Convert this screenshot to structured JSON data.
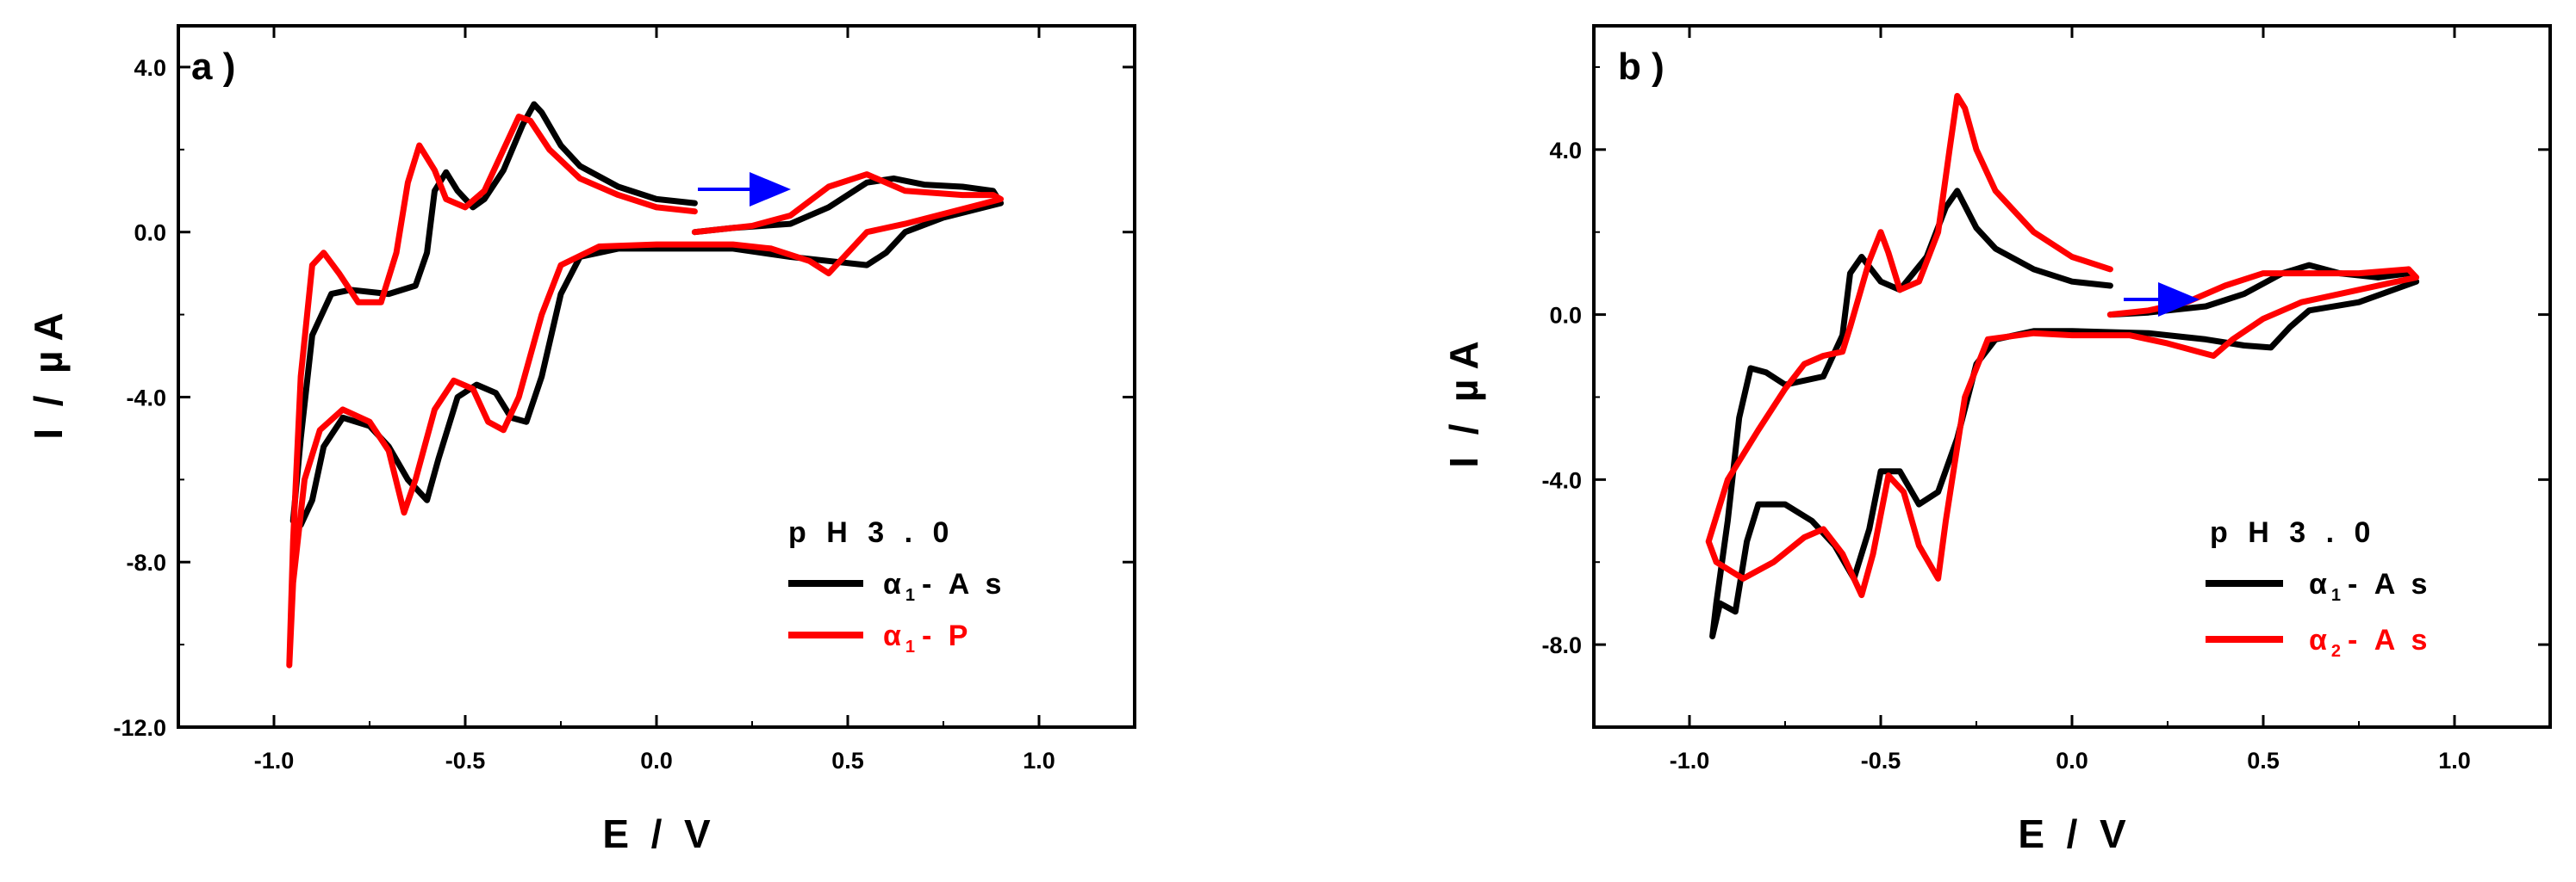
{
  "panels": [
    {
      "label": "a )",
      "xlabel": "E  /  V",
      "ylabel": "I  /  µ A",
      "xlim": [
        -1.25,
        1.25
      ],
      "ylim": [
        -12.0,
        5.0
      ],
      "xticks": [
        "-1.0",
        "-0.5",
        "0.0",
        "0.5",
        "1.0"
      ],
      "xtick_values": [
        -1.0,
        -0.5,
        0.0,
        0.5,
        1.0
      ],
      "yticks": [
        "4.0",
        "0.0",
        "-4.0",
        "-8.0",
        "-12.0"
      ],
      "ytick_values": [
        4.0,
        0.0,
        -4.0,
        -8.0,
        -12.0
      ],
      "legend": {
        "title": "p H 3 . 0",
        "entries": [
          {
            "symbol": "α",
            "sub": "1",
            "text": "- A s",
            "color": "#000000"
          },
          {
            "symbol": "α",
            "sub": "1",
            "text": "- P",
            "color": "#ff0000"
          }
        ]
      },
      "arrow_color": "#0000ff"
    },
    {
      "label": "b )",
      "xlabel": "E  /  V",
      "ylabel": "I  /  µ A",
      "xlim": [
        -1.25,
        1.25
      ],
      "ylim": [
        -10.0,
        7.0
      ],
      "xticks": [
        "-1.0",
        "-0.5",
        "0.0",
        "0.5",
        "1.0"
      ],
      "xtick_values": [
        -1.0,
        -0.5,
        0.0,
        0.5,
        1.0
      ],
      "yticks": [
        "4.0",
        "0.0",
        "-4.0",
        "-8.0"
      ],
      "ytick_values": [
        4.0,
        0.0,
        -4.0,
        -8.0
      ],
      "legend": {
        "title": "p H 3 . 0",
        "entries": [
          {
            "symbol": "α",
            "sub": "1",
            "text": "- A s",
            "color": "#000000"
          },
          {
            "symbol": "α",
            "sub": "2",
            "text": "- A s",
            "color": "#ff0000"
          }
        ]
      },
      "arrow_color": "#0000ff"
    }
  ],
  "chart_data": [
    {
      "type": "line",
      "title": "",
      "xlabel": "E / V",
      "ylabel": "I / µA",
      "xlim": [
        -1.25,
        1.25
      ],
      "ylim": [
        -12.0,
        5.0
      ],
      "series": [
        {
          "name": "α1-As",
          "color": "#000000",
          "points": [
            [
              0.1,
              0.7
            ],
            [
              0.0,
              0.8
            ],
            [
              -0.1,
              1.1
            ],
            [
              -0.2,
              1.6
            ],
            [
              -0.25,
              2.1
            ],
            [
              -0.3,
              2.9
            ],
            [
              -0.32,
              3.1
            ],
            [
              -0.35,
              2.6
            ],
            [
              -0.4,
              1.5
            ],
            [
              -0.45,
              0.8
            ],
            [
              -0.48,
              0.6
            ],
            [
              -0.52,
              1.0
            ],
            [
              -0.55,
              1.45
            ],
            [
              -0.58,
              1.0
            ],
            [
              -0.6,
              -0.5
            ],
            [
              -0.63,
              -1.3
            ],
            [
              -0.7,
              -1.5
            ],
            [
              -0.8,
              -1.4
            ],
            [
              -0.85,
              -1.5
            ],
            [
              -0.9,
              -2.5
            ],
            [
              -0.93,
              -5.0
            ],
            [
              -0.95,
              -7.0
            ],
            [
              -0.93,
              -7.1
            ],
            [
              -0.9,
              -6.5
            ],
            [
              -0.87,
              -5.2
            ],
            [
              -0.82,
              -4.5
            ],
            [
              -0.75,
              -4.7
            ],
            [
              -0.7,
              -5.2
            ],
            [
              -0.65,
              -6.0
            ],
            [
              -0.6,
              -6.5
            ],
            [
              -0.57,
              -5.5
            ],
            [
              -0.52,
              -4.0
            ],
            [
              -0.47,
              -3.7
            ],
            [
              -0.42,
              -3.9
            ],
            [
              -0.38,
              -4.5
            ],
            [
              -0.34,
              -4.6
            ],
            [
              -0.3,
              -3.5
            ],
            [
              -0.25,
              -1.5
            ],
            [
              -0.2,
              -0.6
            ],
            [
              -0.1,
              -0.4
            ],
            [
              0.0,
              -0.4
            ],
            [
              0.2,
              -0.4
            ],
            [
              0.35,
              -0.6
            ],
            [
              0.45,
              -0.7
            ],
            [
              0.55,
              -0.8
            ],
            [
              0.6,
              -0.5
            ],
            [
              0.65,
              0.0
            ],
            [
              0.75,
              0.35
            ],
            [
              0.9,
              0.7
            ],
            [
              0.88,
              1.0
            ],
            [
              0.8,
              1.1
            ],
            [
              0.7,
              1.15
            ],
            [
              0.62,
              1.3
            ],
            [
              0.55,
              1.2
            ],
            [
              0.45,
              0.6
            ],
            [
              0.35,
              0.2
            ],
            [
              0.2,
              0.1
            ],
            [
              0.1,
              0.0
            ]
          ]
        },
        {
          "name": "α1-P",
          "color": "#ff0000",
          "points": [
            [
              0.1,
              0.5
            ],
            [
              0.0,
              0.6
            ],
            [
              -0.1,
              0.9
            ],
            [
              -0.2,
              1.3
            ],
            [
              -0.28,
              2.0
            ],
            [
              -0.33,
              2.7
            ],
            [
              -0.36,
              2.8
            ],
            [
              -0.4,
              2.0
            ],
            [
              -0.45,
              1.0
            ],
            [
              -0.5,
              0.6
            ],
            [
              -0.55,
              0.8
            ],
            [
              -0.58,
              1.5
            ],
            [
              -0.62,
              2.1
            ],
            [
              -0.65,
              1.2
            ],
            [
              -0.68,
              -0.5
            ],
            [
              -0.72,
              -1.7
            ],
            [
              -0.78,
              -1.7
            ],
            [
              -0.83,
              -1.0
            ],
            [
              -0.87,
              -0.5
            ],
            [
              -0.9,
              -0.8
            ],
            [
              -0.93,
              -3.5
            ],
            [
              -0.95,
              -7.5
            ],
            [
              -0.96,
              -10.5
            ],
            [
              -0.95,
              -8.5
            ],
            [
              -0.92,
              -6.0
            ],
            [
              -0.88,
              -4.8
            ],
            [
              -0.82,
              -4.3
            ],
            [
              -0.75,
              -4.6
            ],
            [
              -0.7,
              -5.3
            ],
            [
              -0.66,
              -6.8
            ],
            [
              -0.63,
              -6.0
            ],
            [
              -0.58,
              -4.3
            ],
            [
              -0.53,
              -3.6
            ],
            [
              -0.48,
              -3.8
            ],
            [
              -0.44,
              -4.6
            ],
            [
              -0.4,
              -4.8
            ],
            [
              -0.36,
              -4.0
            ],
            [
              -0.3,
              -2.0
            ],
            [
              -0.25,
              -0.8
            ],
            [
              -0.15,
              -0.35
            ],
            [
              0.0,
              -0.3
            ],
            [
              0.2,
              -0.3
            ],
            [
              0.3,
              -0.4
            ],
            [
              0.4,
              -0.7
            ],
            [
              0.45,
              -1.0
            ],
            [
              0.5,
              -0.5
            ],
            [
              0.55,
              0.0
            ],
            [
              0.65,
              0.2
            ],
            [
              0.9,
              0.8
            ],
            [
              0.88,
              0.9
            ],
            [
              0.8,
              0.9
            ],
            [
              0.65,
              1.0
            ],
            [
              0.55,
              1.4
            ],
            [
              0.45,
              1.1
            ],
            [
              0.35,
              0.4
            ],
            [
              0.25,
              0.15
            ],
            [
              0.1,
              0.0
            ]
          ]
        }
      ],
      "annotations": [
        "blue arrow at E ≈ 0.1→0.35 V, I ≈ 1.1 µA pointing right"
      ]
    },
    {
      "type": "line",
      "title": "",
      "xlabel": "E / V",
      "ylabel": "I / µA",
      "xlim": [
        -1.25,
        1.25
      ],
      "ylim": [
        -10.0,
        7.0
      ],
      "series": [
        {
          "name": "α1-As",
          "color": "#000000",
          "points": [
            [
              0.1,
              0.7
            ],
            [
              0.0,
              0.8
            ],
            [
              -0.1,
              1.1
            ],
            [
              -0.2,
              1.6
            ],
            [
              -0.25,
              2.1
            ],
            [
              -0.3,
              3.0
            ],
            [
              -0.33,
              2.6
            ],
            [
              -0.38,
              1.4
            ],
            [
              -0.45,
              0.6
            ],
            [
              -0.5,
              0.8
            ],
            [
              -0.55,
              1.4
            ],
            [
              -0.58,
              1.0
            ],
            [
              -0.6,
              -0.5
            ],
            [
              -0.65,
              -1.5
            ],
            [
              -0.75,
              -1.7
            ],
            [
              -0.8,
              -1.4
            ],
            [
              -0.84,
              -1.3
            ],
            [
              -0.87,
              -2.5
            ],
            [
              -0.9,
              -5.0
            ],
            [
              -0.93,
              -7.0
            ],
            [
              -0.94,
              -7.8
            ],
            [
              -0.92,
              -7.0
            ],
            [
              -0.88,
              -7.2
            ],
            [
              -0.85,
              -5.5
            ],
            [
              -0.82,
              -4.6
            ],
            [
              -0.75,
              -4.6
            ],
            [
              -0.68,
              -5.0
            ],
            [
              -0.62,
              -5.6
            ],
            [
              -0.57,
              -6.4
            ],
            [
              -0.53,
              -5.2
            ],
            [
              -0.5,
              -3.8
            ],
            [
              -0.45,
              -3.8
            ],
            [
              -0.4,
              -4.6
            ],
            [
              -0.35,
              -4.3
            ],
            [
              -0.3,
              -3.0
            ],
            [
              -0.25,
              -1.2
            ],
            [
              -0.2,
              -0.6
            ],
            [
              -0.1,
              -0.4
            ],
            [
              0.0,
              -0.4
            ],
            [
              0.2,
              -0.45
            ],
            [
              0.35,
              -0.6
            ],
            [
              0.45,
              -0.75
            ],
            [
              0.52,
              -0.8
            ],
            [
              0.57,
              -0.3
            ],
            [
              0.62,
              0.1
            ],
            [
              0.75,
              0.3
            ],
            [
              0.9,
              0.8
            ],
            [
              0.88,
              1.0
            ],
            [
              0.8,
              0.9
            ],
            [
              0.7,
              1.0
            ],
            [
              0.62,
              1.2
            ],
            [
              0.55,
              1.0
            ],
            [
              0.45,
              0.5
            ],
            [
              0.35,
              0.2
            ],
            [
              0.2,
              0.05
            ],
            [
              0.1,
              0.0
            ]
          ]
        },
        {
          "name": "α2-As",
          "color": "#ff0000",
          "points": [
            [
              0.1,
              1.1
            ],
            [
              0.0,
              1.4
            ],
            [
              -0.1,
              2.0
            ],
            [
              -0.2,
              3.0
            ],
            [
              -0.25,
              4.0
            ],
            [
              -0.28,
              5.0
            ],
            [
              -0.3,
              5.3
            ],
            [
              -0.32,
              4.0
            ],
            [
              -0.35,
              2.0
            ],
            [
              -0.4,
              0.8
            ],
            [
              -0.45,
              0.6
            ],
            [
              -0.48,
              1.5
            ],
            [
              -0.5,
              2.0
            ],
            [
              -0.53,
              1.3
            ],
            [
              -0.58,
              -0.3
            ],
            [
              -0.6,
              -0.9
            ],
            [
              -0.65,
              -1.0
            ],
            [
              -0.7,
              -1.2
            ],
            [
              -0.75,
              -1.8
            ],
            [
              -0.82,
              -2.8
            ],
            [
              -0.9,
              -4.0
            ],
            [
              -0.95,
              -5.5
            ],
            [
              -0.93,
              -6.0
            ],
            [
              -0.86,
              -6.4
            ],
            [
              -0.78,
              -6.0
            ],
            [
              -0.7,
              -5.4
            ],
            [
              -0.65,
              -5.2
            ],
            [
              -0.6,
              -5.8
            ],
            [
              -0.55,
              -6.8
            ],
            [
              -0.52,
              -5.8
            ],
            [
              -0.48,
              -3.9
            ],
            [
              -0.44,
              -4.3
            ],
            [
              -0.4,
              -5.6
            ],
            [
              -0.35,
              -6.4
            ],
            [
              -0.33,
              -5.0
            ],
            [
              -0.28,
              -2.0
            ],
            [
              -0.22,
              -0.6
            ],
            [
              -0.1,
              -0.45
            ],
            [
              0.0,
              -0.5
            ],
            [
              0.15,
              -0.5
            ],
            [
              0.25,
              -0.7
            ],
            [
              0.33,
              -0.9
            ],
            [
              0.37,
              -1.0
            ],
            [
              0.42,
              -0.6
            ],
            [
              0.5,
              -0.1
            ],
            [
              0.6,
              0.3
            ],
            [
              0.9,
              0.9
            ],
            [
              0.88,
              1.1
            ],
            [
              0.75,
              1.0
            ],
            [
              0.6,
              1.0
            ],
            [
              0.5,
              1.0
            ],
            [
              0.4,
              0.7
            ],
            [
              0.3,
              0.3
            ],
            [
              0.2,
              0.1
            ],
            [
              0.1,
              0.0
            ]
          ]
        }
      ],
      "annotations": [
        "blue arrow at E ≈ 0.15→0.3 V, I ≈ 0.4 µA pointing right"
      ]
    }
  ]
}
